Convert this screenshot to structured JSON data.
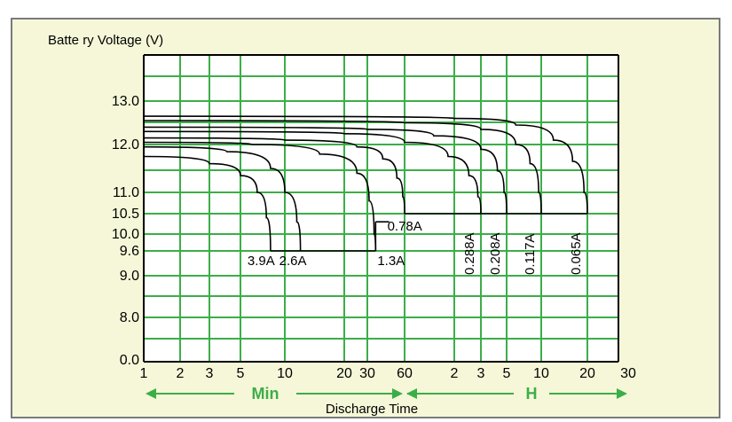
{
  "chart_data": {
    "type": "line",
    "ylabel": "Batte ry Voltage (V)",
    "xlabel": "Discharge Time",
    "y_ticks": [
      "0.0",
      "8.0",
      "9.0",
      "9.6",
      "10.0",
      "10.5",
      "11.0",
      "12.0",
      "13.0"
    ],
    "x_ticks": [
      "1",
      "2",
      "3",
      "5",
      "10",
      "20",
      "30",
      "60",
      "2",
      "3",
      "5",
      "10",
      "20",
      "30"
    ],
    "units": {
      "minutes": "Min",
      "hours": "H"
    },
    "grid": true,
    "colors": {
      "grid": "#3cae48",
      "curve": "#000000",
      "panel": "#f5f7d8",
      "arrow": "#3cae48"
    },
    "series": [
      {
        "name": "3.9A",
        "end_minutes": 8,
        "points": [
          [
            1,
            11.75
          ],
          [
            3,
            11.6
          ],
          [
            5,
            11.35
          ],
          [
            6.5,
            11.0
          ],
          [
            7.5,
            10.4
          ],
          [
            8,
            9.6
          ]
        ]
      },
      {
        "name": "2.6A",
        "end_minutes": 12,
        "points": [
          [
            1,
            11.95
          ],
          [
            4,
            11.85
          ],
          [
            8,
            11.5
          ],
          [
            10,
            11.0
          ],
          [
            11.5,
            10.3
          ],
          [
            12,
            9.6
          ]
        ]
      },
      {
        "name": "1.3A",
        "end_minutes": 35,
        "points": [
          [
            1,
            12.05
          ],
          [
            6,
            12.0
          ],
          [
            15,
            11.8
          ],
          [
            25,
            11.4
          ],
          [
            31,
            10.8
          ],
          [
            34,
            10.0
          ],
          [
            35,
            9.6
          ]
        ]
      },
      {
        "name": "0.78A",
        "end_minutes": 60,
        "points": [
          [
            1,
            12.15
          ],
          [
            10,
            12.1
          ],
          [
            25,
            11.95
          ],
          [
            40,
            11.7
          ],
          [
            52,
            11.3
          ],
          [
            58,
            10.9
          ],
          [
            60,
            10.5
          ]
        ]
      },
      {
        "name": "0.288A",
        "end_minutes": 180,
        "points": [
          [
            1,
            12.3
          ],
          [
            20,
            12.25
          ],
          [
            60,
            12.05
          ],
          [
            110,
            11.75
          ],
          [
            150,
            11.35
          ],
          [
            172,
            10.9
          ],
          [
            180,
            10.5
          ]
        ]
      },
      {
        "name": "0.208A",
        "end_minutes": 300,
        "points": [
          [
            1,
            12.4
          ],
          [
            30,
            12.35
          ],
          [
            90,
            12.2
          ],
          [
            180,
            11.9
          ],
          [
            250,
            11.45
          ],
          [
            285,
            11.0
          ],
          [
            300,
            10.5
          ]
        ]
      },
      {
        "name": "0.117A",
        "end_minutes": 600,
        "points": [
          [
            1,
            12.55
          ],
          [
            60,
            12.5
          ],
          [
            180,
            12.35
          ],
          [
            360,
            12.0
          ],
          [
            480,
            11.6
          ],
          [
            570,
            11.0
          ],
          [
            600,
            10.5
          ]
        ]
      },
      {
        "name": "0.065A",
        "end_minutes": 1200,
        "points": [
          [
            1,
            12.65
          ],
          [
            120,
            12.6
          ],
          [
            360,
            12.45
          ],
          [
            720,
            12.1
          ],
          [
            960,
            11.65
          ],
          [
            1140,
            11.0
          ],
          [
            1200,
            10.5
          ]
        ]
      }
    ],
    "cutoff_lines": [
      {
        "voltage": 9.6,
        "from_minutes": 8,
        "to_minutes": 35
      },
      {
        "voltage": 10.5,
        "from_minutes": 60,
        "to_minutes": 1200
      }
    ]
  }
}
